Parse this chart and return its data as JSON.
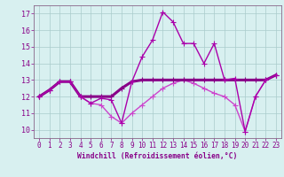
{
  "x": [
    0,
    1,
    2,
    3,
    4,
    5,
    6,
    7,
    8,
    9,
    10,
    11,
    12,
    13,
    14,
    15,
    16,
    17,
    18,
    19,
    20,
    21,
    22,
    23
  ],
  "line1": [
    12.0,
    12.4,
    12.9,
    12.9,
    12.0,
    11.6,
    11.9,
    11.8,
    10.4,
    12.9,
    14.4,
    15.4,
    17.1,
    16.5,
    15.2,
    15.2,
    14.0,
    15.2,
    13.0,
    13.1,
    9.9,
    12.0,
    13.0,
    13.3
  ],
  "line2": [
    12.0,
    12.4,
    12.9,
    12.9,
    12.0,
    12.0,
    12.0,
    12.0,
    12.5,
    12.9,
    13.0,
    13.0,
    13.0,
    13.0,
    13.0,
    13.0,
    13.0,
    13.0,
    13.0,
    13.0,
    13.0,
    13.0,
    13.0,
    13.3
  ],
  "line3": [
    12.0,
    12.4,
    12.9,
    12.9,
    12.0,
    11.6,
    11.5,
    10.8,
    10.4,
    11.0,
    11.5,
    12.0,
    12.5,
    12.8,
    13.0,
    12.8,
    12.5,
    12.2,
    12.0,
    11.5,
    9.9,
    12.0,
    13.0,
    13.3
  ],
  "color1": "#aa00aa",
  "color2": "#880088",
  "color3": "#cc44cc",
  "bg_color": "#d8f0f0",
  "grid_color": "#aacccc",
  "axis_color": "#880088",
  "spine_color": "#886688",
  "xlabel": "Windchill (Refroidissement éolien,°C)",
  "xlim": [
    -0.5,
    23.5
  ],
  "ylim": [
    9.5,
    17.5
  ],
  "yticks": [
    10,
    11,
    12,
    13,
    14,
    15,
    16,
    17
  ],
  "xticks": [
    0,
    1,
    2,
    3,
    4,
    5,
    6,
    7,
    8,
    9,
    10,
    11,
    12,
    13,
    14,
    15,
    16,
    17,
    18,
    19,
    20,
    21,
    22,
    23
  ],
  "marker": "+",
  "markersize": 4,
  "linewidth1": 1.0,
  "linewidth2": 2.2,
  "linewidth3": 1.0
}
